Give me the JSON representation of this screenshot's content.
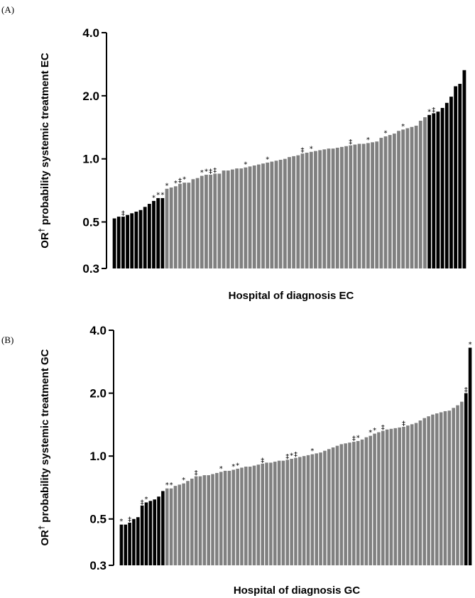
{
  "chart_data": [
    {
      "panel_label": "(A)",
      "type": "bar",
      "title": "",
      "xlabel": "Hospital of diagnosis EC",
      "ylabel": "OR† probability systemic treatment EC",
      "ylabel_main": "OR",
      "ylabel_sup": "†",
      "ylabel_rest": " probability systemic treatment EC",
      "y_scale": "log",
      "ylim": [
        0.3,
        4.0
      ],
      "yticks": [
        0.3,
        0.5,
        1.0,
        2.0,
        4.0
      ],
      "ytick_labels": [
        "0.3",
        "0.5",
        "1.0",
        "2.0",
        "4.0"
      ],
      "grid": false,
      "categories_labeled": false,
      "colors": {
        "significant": "#000000",
        "nonsignificant": "#808080"
      },
      "n_low_black": 12,
      "n_high_black": 9,
      "values": [
        0.52,
        0.53,
        0.53,
        0.54,
        0.55,
        0.56,
        0.57,
        0.59,
        0.61,
        0.63,
        0.65,
        0.65,
        0.72,
        0.73,
        0.74,
        0.76,
        0.77,
        0.77,
        0.8,
        0.81,
        0.83,
        0.84,
        0.84,
        0.85,
        0.85,
        0.88,
        0.88,
        0.89,
        0.9,
        0.9,
        0.91,
        0.92,
        0.93,
        0.94,
        0.95,
        0.96,
        0.97,
        0.98,
        0.99,
        1.0,
        1.02,
        1.03,
        1.04,
        1.06,
        1.07,
        1.08,
        1.09,
        1.1,
        1.11,
        1.12,
        1.12,
        1.13,
        1.14,
        1.15,
        1.16,
        1.17,
        1.18,
        1.18,
        1.19,
        1.2,
        1.21,
        1.26,
        1.28,
        1.3,
        1.32,
        1.36,
        1.38,
        1.4,
        1.42,
        1.44,
        1.52,
        1.58,
        1.62,
        1.65,
        1.68,
        1.75,
        1.85,
        1.98,
        2.22,
        2.28,
        2.65
      ],
      "markers": [
        {
          "index": 2,
          "symbol": "‡"
        },
        {
          "index": 9,
          "symbol": "*"
        },
        {
          "index": 10,
          "symbol": "*"
        },
        {
          "index": 11,
          "symbol": "*"
        },
        {
          "index": 12,
          "symbol": "*"
        },
        {
          "index": 14,
          "symbol": "*"
        },
        {
          "index": 15,
          "symbol": "‡"
        },
        {
          "index": 16,
          "symbol": "*"
        },
        {
          "index": 20,
          "symbol": "*"
        },
        {
          "index": 21,
          "symbol": "*"
        },
        {
          "index": 22,
          "symbol": "‡"
        },
        {
          "index": 23,
          "symbol": "‡"
        },
        {
          "index": 30,
          "symbol": "*"
        },
        {
          "index": 35,
          "symbol": "*"
        },
        {
          "index": 43,
          "symbol": "‡"
        },
        {
          "index": 45,
          "symbol": "*"
        },
        {
          "index": 54,
          "symbol": "‡"
        },
        {
          "index": 58,
          "symbol": "*"
        },
        {
          "index": 62,
          "symbol": "*"
        },
        {
          "index": 66,
          "symbol": "*"
        },
        {
          "index": 72,
          "symbol": "*"
        },
        {
          "index": 73,
          "symbol": "‡"
        }
      ]
    },
    {
      "panel_label": "(B)",
      "type": "bar",
      "title": "",
      "xlabel": "Hospital of diagnosis GC",
      "ylabel": "OR† probability systemic treatment GC",
      "ylabel_main": "OR",
      "ylabel_sup": "†",
      "ylabel_rest": " probability systemic treatment GC",
      "y_scale": "log",
      "ylim": [
        0.3,
        4.0
      ],
      "yticks": [
        0.3,
        0.5,
        1.0,
        2.0,
        4.0
      ],
      "ytick_labels": [
        "0.3",
        "0.5",
        "1.0",
        "2.0",
        "4.0"
      ],
      "grid": false,
      "categories_labeled": false,
      "colors": {
        "significant": "#000000",
        "nonsignificant": "#808080"
      },
      "n_low_black": 11,
      "n_high_black": 2,
      "values": [
        0.47,
        0.47,
        0.48,
        0.5,
        0.51,
        0.58,
        0.6,
        0.61,
        0.62,
        0.64,
        0.68,
        0.7,
        0.7,
        0.72,
        0.73,
        0.74,
        0.76,
        0.78,
        0.8,
        0.8,
        0.81,
        0.81,
        0.82,
        0.83,
        0.84,
        0.85,
        0.85,
        0.86,
        0.87,
        0.88,
        0.89,
        0.89,
        0.9,
        0.91,
        0.92,
        0.93,
        0.93,
        0.94,
        0.95,
        0.95,
        0.96,
        0.97,
        0.98,
        0.99,
        1.0,
        1.01,
        1.02,
        1.03,
        1.04,
        1.06,
        1.08,
        1.1,
        1.12,
        1.14,
        1.15,
        1.16,
        1.17,
        1.18,
        1.2,
        1.23,
        1.25,
        1.28,
        1.3,
        1.32,
        1.34,
        1.35,
        1.36,
        1.37,
        1.38,
        1.4,
        1.42,
        1.44,
        1.48,
        1.52,
        1.55,
        1.58,
        1.6,
        1.62,
        1.64,
        1.65,
        1.7,
        1.75,
        1.82,
        2.0,
        3.3
      ],
      "markers": [
        {
          "index": 0,
          "symbol": "*"
        },
        {
          "index": 2,
          "symbol": "‡"
        },
        {
          "index": 5,
          "symbol": "‡"
        },
        {
          "index": 6,
          "symbol": "*"
        },
        {
          "index": 11,
          "symbol": "*"
        },
        {
          "index": 12,
          "symbol": "*"
        },
        {
          "index": 15,
          "symbol": "*"
        },
        {
          "index": 18,
          "symbol": "‡"
        },
        {
          "index": 24,
          "symbol": "*"
        },
        {
          "index": 27,
          "symbol": "*"
        },
        {
          "index": 28,
          "symbol": "*"
        },
        {
          "index": 34,
          "symbol": "‡"
        },
        {
          "index": 40,
          "symbol": "‡"
        },
        {
          "index": 41,
          "symbol": "*"
        },
        {
          "index": 42,
          "symbol": "‡"
        },
        {
          "index": 46,
          "symbol": "*"
        },
        {
          "index": 56,
          "symbol": "‡"
        },
        {
          "index": 57,
          "symbol": "*"
        },
        {
          "index": 60,
          "symbol": "*"
        },
        {
          "index": 61,
          "symbol": "*"
        },
        {
          "index": 63,
          "symbol": "‡"
        },
        {
          "index": 68,
          "symbol": "‡"
        },
        {
          "index": 83,
          "symbol": "‡"
        },
        {
          "index": 84,
          "symbol": "*"
        }
      ]
    }
  ]
}
